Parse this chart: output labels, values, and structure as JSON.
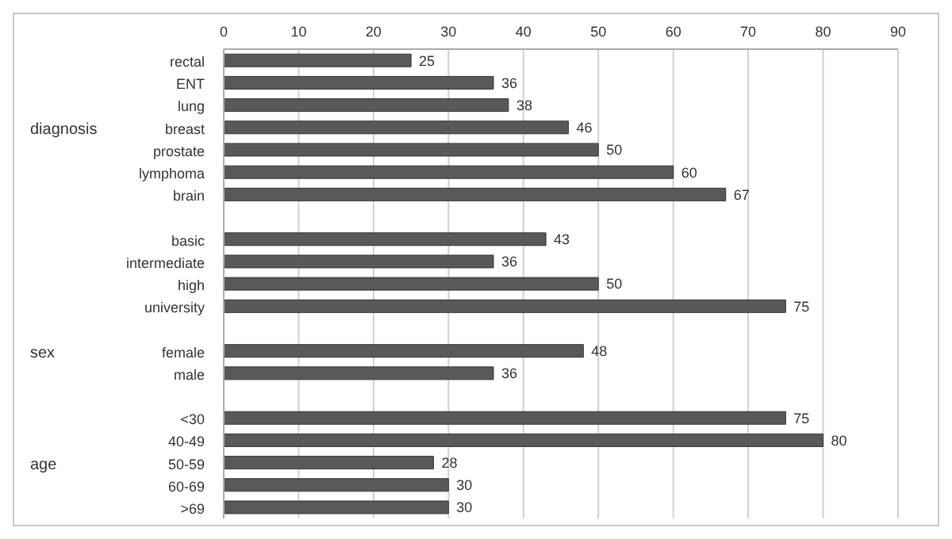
{
  "chart_data": {
    "type": "bar",
    "orientation": "horizontal",
    "categories": [
      "rectal",
      "ENT",
      "lung",
      "breast",
      "prostate",
      "lymphoma",
      "brain",
      null,
      "basic",
      "intermediate",
      "high",
      "university",
      null,
      "female",
      "male",
      null,
      "<30",
      "40-49",
      "50-59",
      "60-69",
      ">69"
    ],
    "values": [
      25,
      36,
      38,
      46,
      50,
      60,
      67,
      null,
      43,
      36,
      50,
      75,
      null,
      48,
      36,
      null,
      75,
      80,
      28,
      30,
      30
    ],
    "color": "#595959",
    "xlim": [
      0,
      90
    ],
    "xticks": [
      0,
      10,
      20,
      30,
      40,
      50,
      60,
      70,
      80,
      90
    ],
    "grid": "x",
    "data_labels": true,
    "legend": false,
    "annotations": [
      "diagnosis",
      "sex",
      "age"
    ]
  }
}
